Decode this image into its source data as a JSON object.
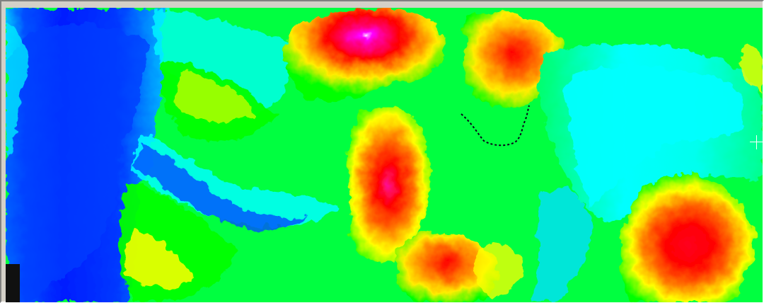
{
  "map": {
    "type": "elevation-heatmap",
    "palette": [
      "#0018ff",
      "#00b8ff",
      "#00ffff",
      "#00ff80",
      "#00ff00",
      "#a8ff00",
      "#ffff00",
      "#ff7a00",
      "#ff0000",
      "#ff0090",
      "#ffffff"
    ],
    "background_color": "#00ff40",
    "frame_color": "#d4d0c8",
    "cursor_icon": "crosshair-icon"
  }
}
